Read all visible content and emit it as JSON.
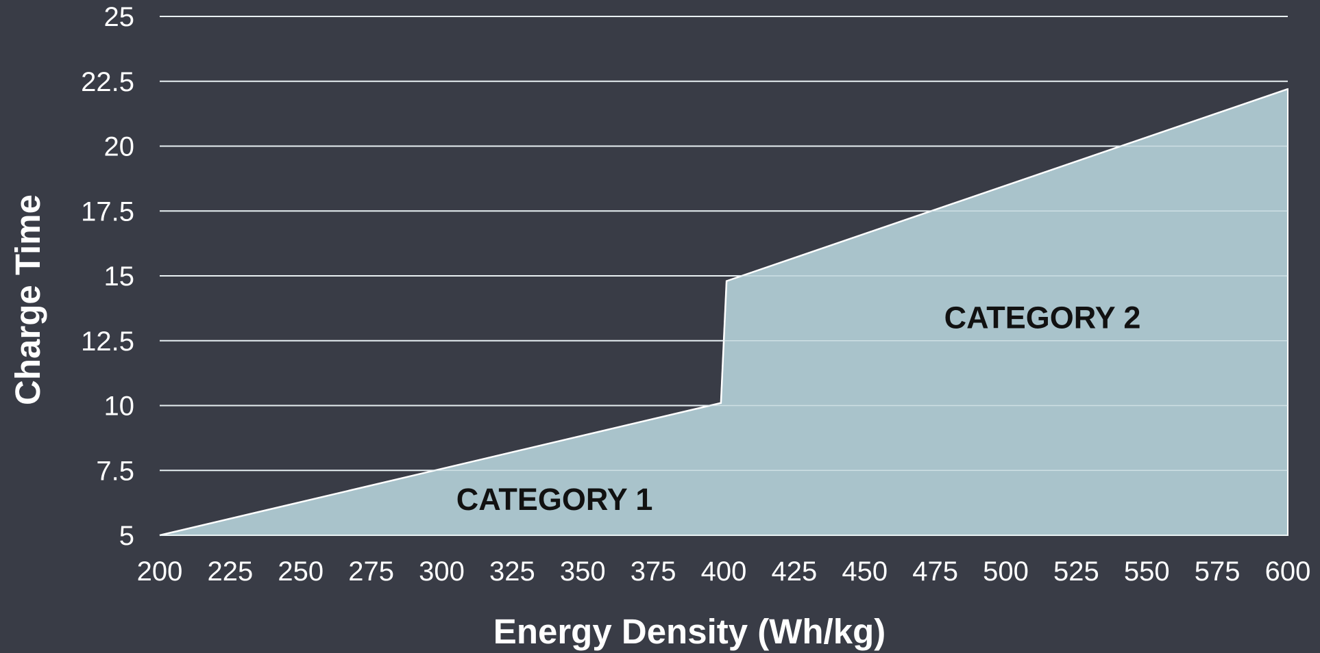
{
  "chart_data": {
    "type": "area",
    "xlabel": "Energy Density (Wh/kg)",
    "ylabel": "Charge Time",
    "xlim": [
      200,
      600
    ],
    "ylim": [
      5,
      25
    ],
    "x_ticks": [
      200,
      225,
      250,
      275,
      300,
      325,
      350,
      375,
      400,
      425,
      450,
      475,
      500,
      525,
      550,
      575,
      600
    ],
    "y_ticks": [
      5,
      7.5,
      10,
      12.5,
      15,
      17.5,
      20,
      22.5,
      25
    ],
    "x_tick_labels": [
      "200",
      "225",
      "250",
      "275",
      "300",
      "325",
      "350",
      "375",
      "400",
      "425",
      "450",
      "475",
      "500",
      "525",
      "550",
      "575",
      "600"
    ],
    "y_tick_labels": [
      "5",
      "7.5",
      "10",
      "12.5",
      "15",
      "17.5",
      "20",
      "22.5",
      "25"
    ],
    "grid": "horizontal",
    "series": [
      {
        "x": [
          200,
          399,
          401,
          600
        ],
        "y": [
          5,
          10.1,
          14.8,
          22.2
        ]
      }
    ],
    "annotations": [
      {
        "text": "CATEGORY 1",
        "x": 340,
        "y": 6.4
      },
      {
        "text": "CATEGORY 2",
        "x": 513,
        "y": 13.4
      }
    ],
    "colors": {
      "background": "#393c46",
      "area_fill": "#a9c3cb",
      "outline": "#ffffff",
      "grid": "#ffffff",
      "text": "#ffffff",
      "annotation_text": "#111111"
    }
  }
}
